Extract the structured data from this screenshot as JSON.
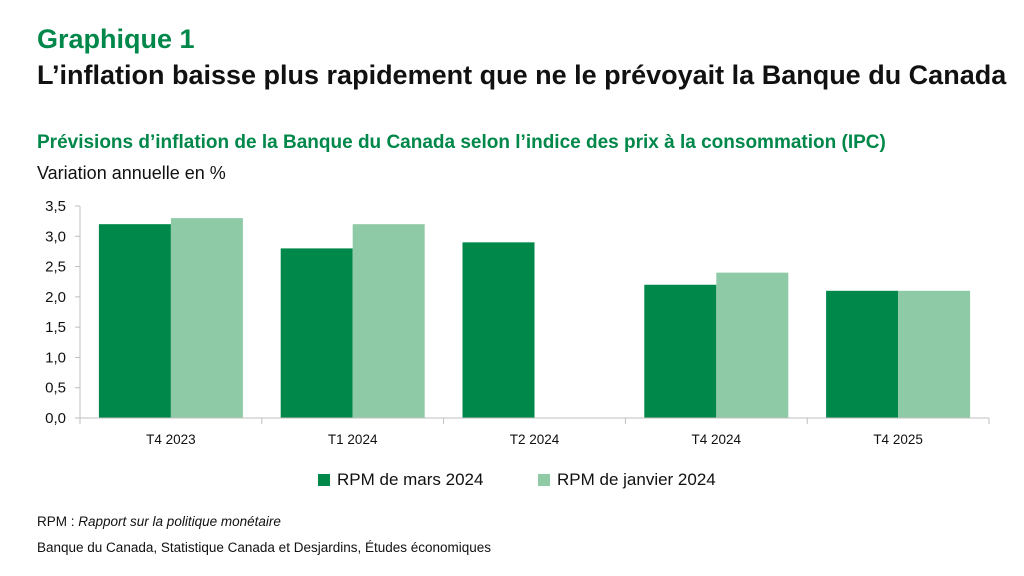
{
  "header": {
    "kicker": "Graphique 1",
    "title": "L’inflation baisse plus rapidement que ne le prévoyait la Banque du Canada"
  },
  "colors": {
    "dark_green": "#00874a",
    "light_green": "#8fcaa7",
    "accent": "#00874a"
  },
  "chart_data": {
    "type": "bar",
    "title": "Prévisions d’inflation de la Banque du Canada selon l’indice des prix à la consommation (IPC)",
    "ylabel": "Variation annuelle en %",
    "xlabel": "",
    "categories": [
      "T4 2023",
      "T1 2024",
      "T2 2024",
      "T4 2024",
      "T4 2025"
    ],
    "series": [
      {
        "name": "RPM de mars 2024",
        "values": [
          3.2,
          2.8,
          2.9,
          2.2,
          2.1
        ]
      },
      {
        "name": "RPM de janvier 2024",
        "values": [
          3.3,
          3.2,
          null,
          2.4,
          2.1
        ]
      }
    ],
    "ylim": [
      0,
      3.5
    ],
    "yticks": [
      "0,0",
      "0,5",
      "1,0",
      "1,5",
      "2,0",
      "2,5",
      "3,0",
      "3,5"
    ],
    "grid": false,
    "legend_position": "bottom"
  },
  "footer": {
    "note_prefix": "RPM : ",
    "note_italic": "Rapport sur la politique monétaire",
    "source": "Banque du Canada, Statistique Canada et Desjardins, Études économiques"
  }
}
